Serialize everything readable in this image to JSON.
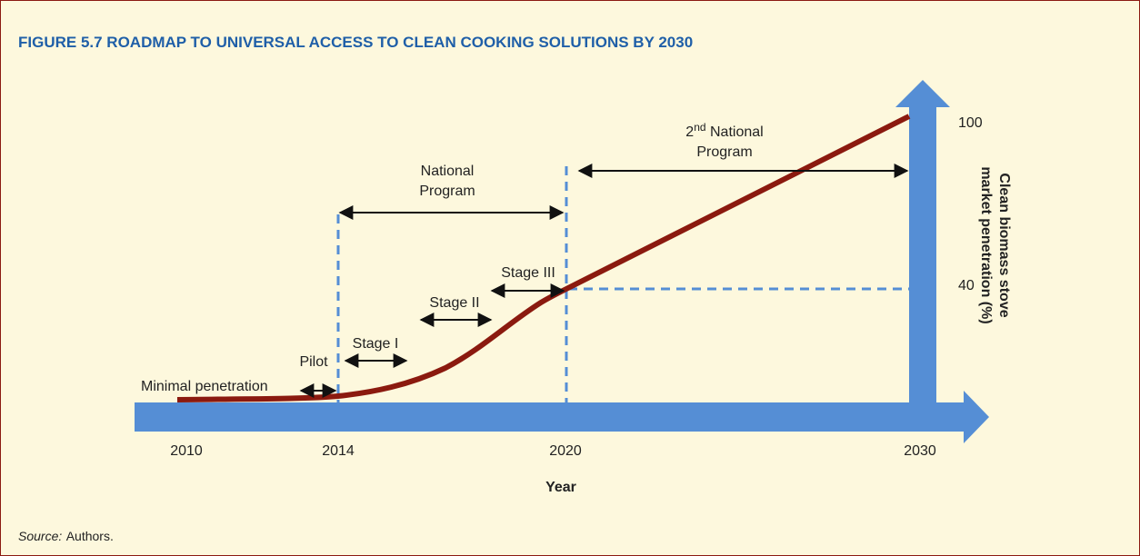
{
  "title": "FIGURE 5.7  ROADMAP TO UNIVERSAL ACCESS TO CLEAN COOKING SOLUTIONS BY 2030",
  "annotations": {
    "minimal": "Minimal penetration",
    "pilot": "Pilot",
    "stage_1": "Stage I",
    "stage_2": "Stage II",
    "stage_3": "Stage III",
    "national": [
      "National",
      "Program"
    ],
    "second_national": {
      "number": "2",
      "ordinal": "nd",
      "line1": " National",
      "line2": "Program"
    }
  },
  "x_axis": {
    "title": "Year",
    "ticks": [
      "2010",
      "2014",
      "2020",
      "2030"
    ]
  },
  "y_axis": {
    "title": [
      "Clean biomass stove",
      "market penetration (%)"
    ],
    "ticks": [
      "100",
      "40"
    ]
  },
  "source": {
    "label": "Source:",
    "text": "Authors."
  }
}
